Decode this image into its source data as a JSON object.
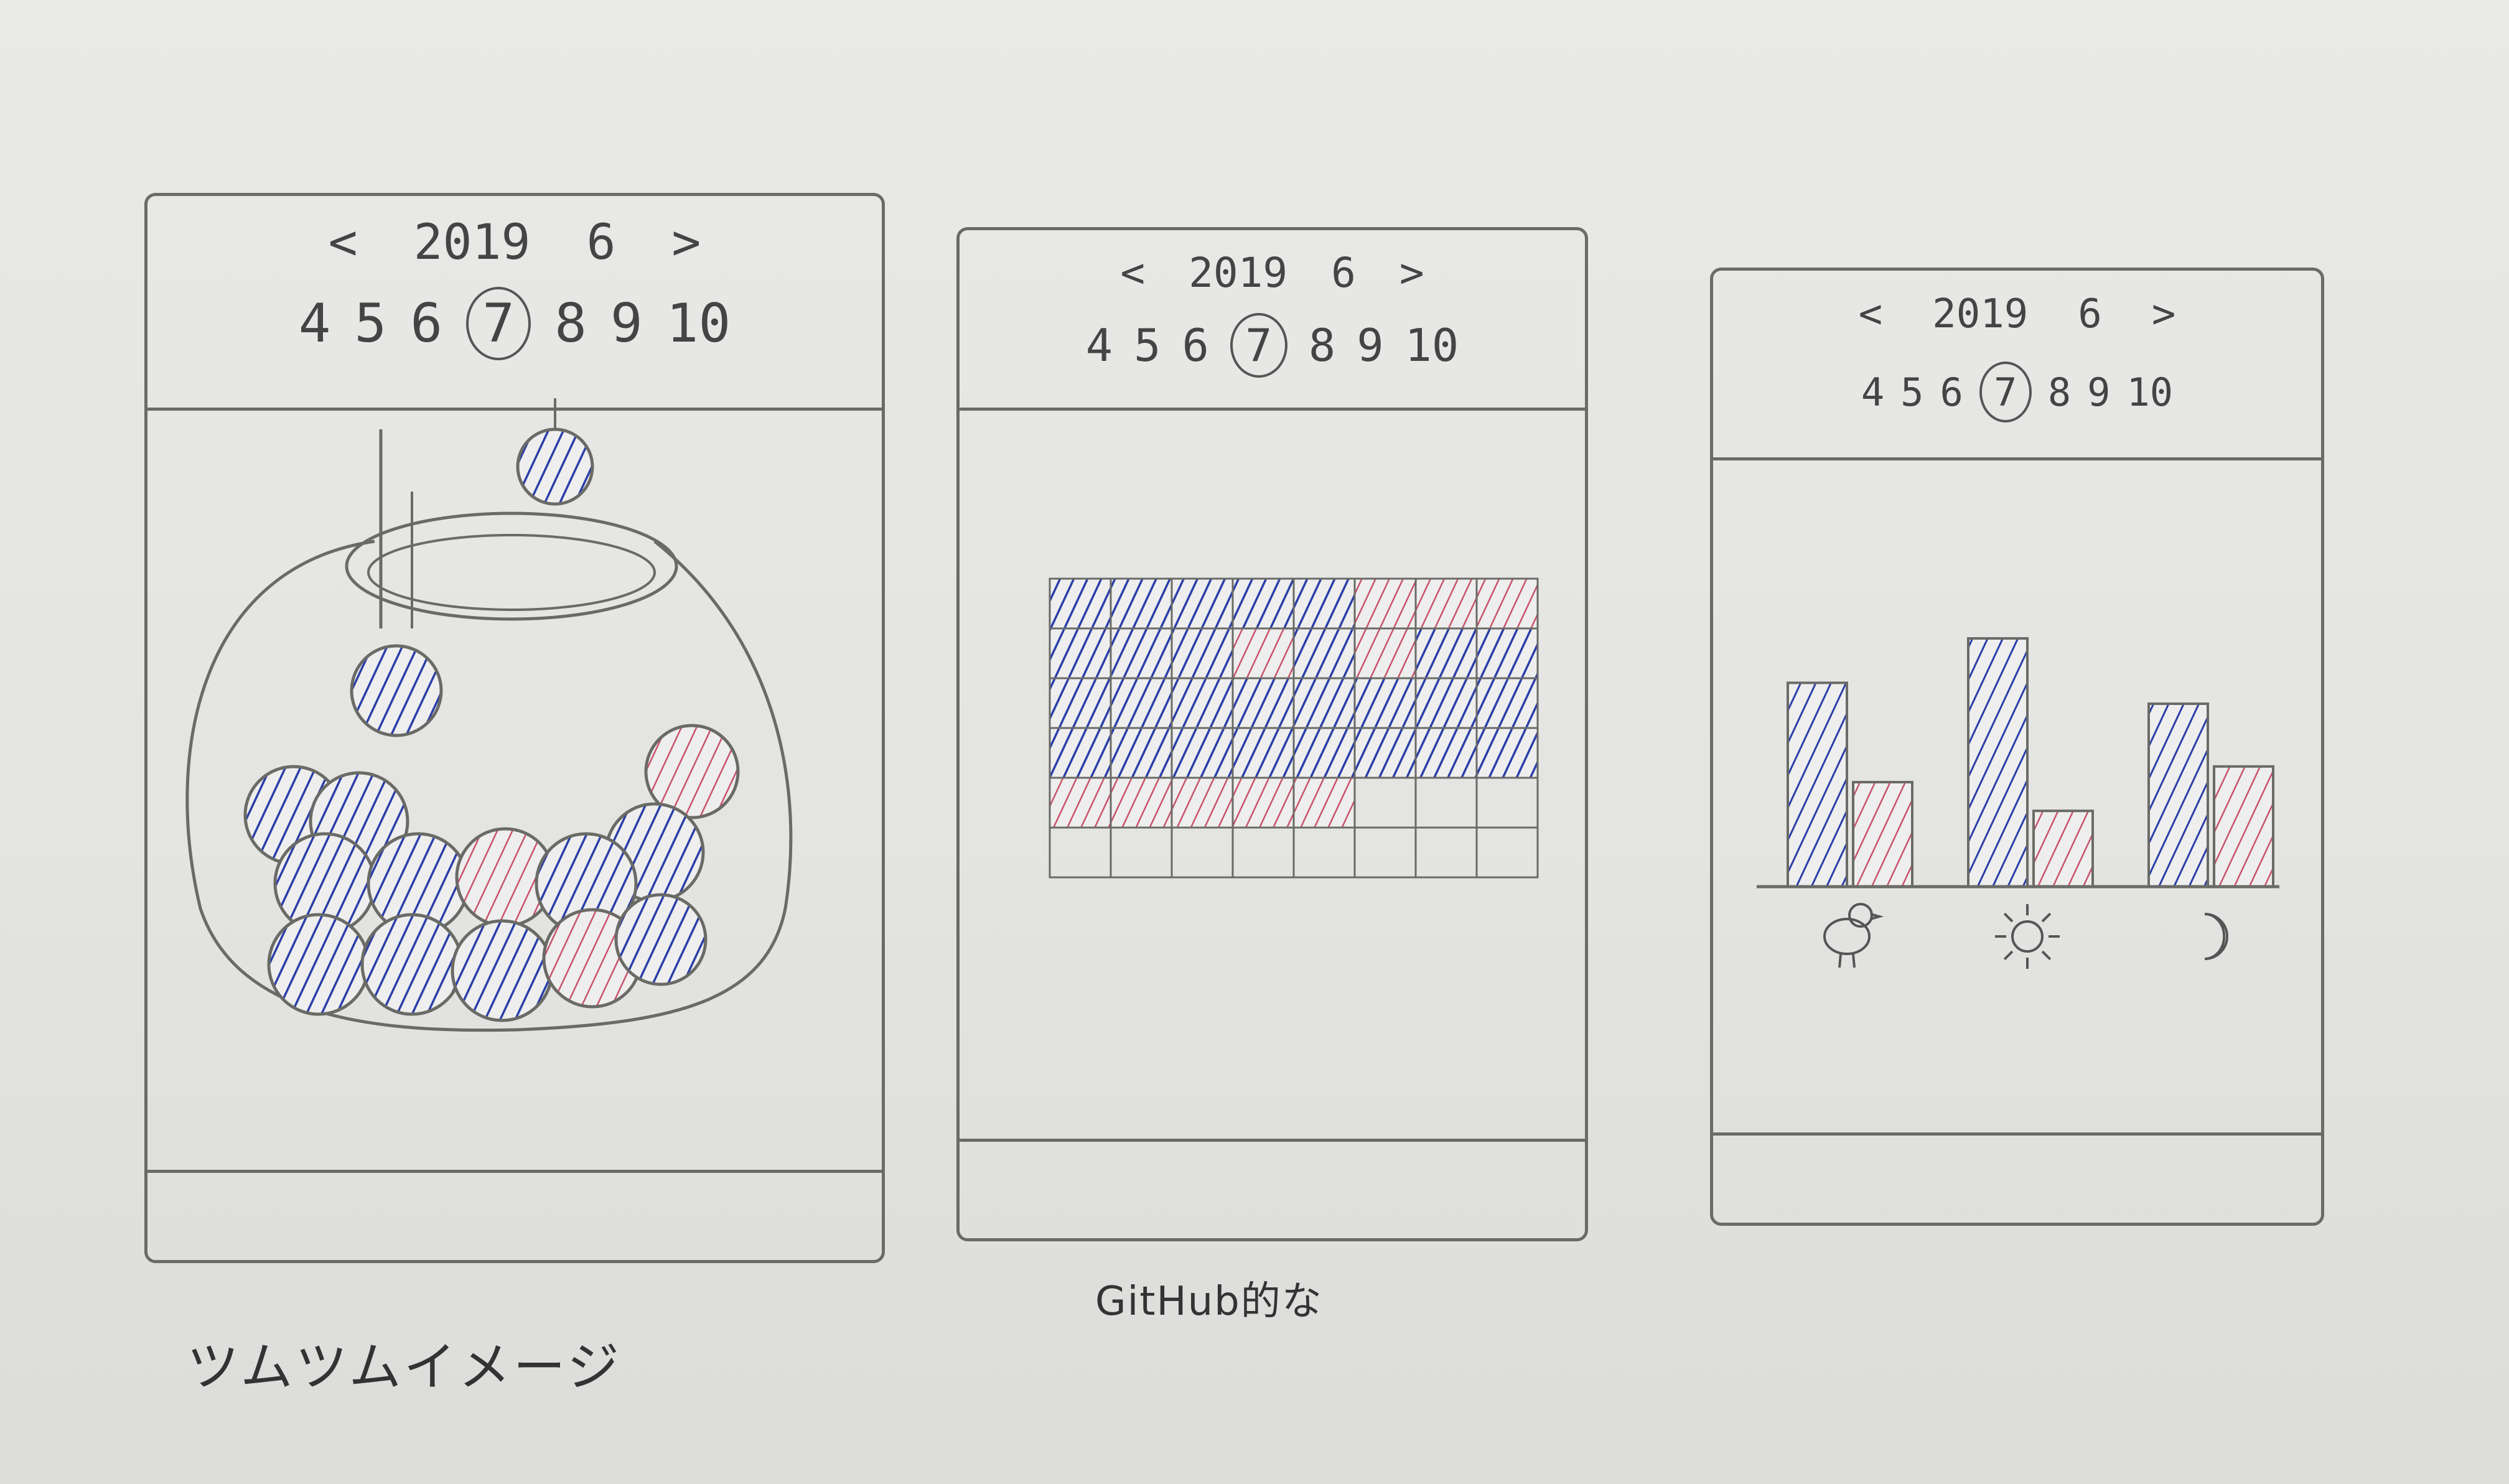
{
  "mockups": [
    {
      "month_nav": {
        "prev": "<",
        "year": "2019",
        "month": "6",
        "next": ">"
      },
      "days": [
        "4",
        "5",
        "6",
        "7",
        "8",
        "9",
        "10"
      ],
      "selected_day": "7",
      "caption": "ツムツムイメージ"
    },
    {
      "month_nav": {
        "prev": "<",
        "year": "2019",
        "month": "6",
        "next": ">"
      },
      "days": [
        "4",
        "5",
        "6",
        "7",
        "8",
        "9",
        "10"
      ],
      "selected_day": "7",
      "caption": "GitHub的な",
      "grid": [
        [
          "b",
          "b",
          "b",
          "b",
          "b",
          "r",
          "r",
          "r"
        ],
        [
          "b",
          "b",
          "b",
          "r",
          "b",
          "r",
          "b",
          "b"
        ],
        [
          "b",
          "b",
          "b",
          "b",
          "b",
          "b",
          "b",
          "b"
        ],
        [
          "b",
          "b",
          "b",
          "b",
          "b",
          "b",
          "b",
          "b"
        ],
        [
          "r",
          "r",
          "r",
          "r",
          "r",
          "",
          "",
          ""
        ],
        [
          "",
          "",
          "",
          "",
          "",
          "",
          "",
          ""
        ]
      ]
    },
    {
      "month_nav": {
        "prev": "<",
        "year": "2019",
        "month": "6",
        "next": ">"
      },
      "days": [
        "4",
        "5",
        "6",
        "7",
        "8",
        "9",
        "10"
      ],
      "selected_day": "7",
      "chart_data": {
        "type": "bar",
        "categories": [
          "morning-chick-icon",
          "noon-sun-icon",
          "night-moon-icon"
        ],
        "series": [
          {
            "color": "#2b3fa8",
            "values": [
              0.78,
              0.95,
              0.7
            ]
          },
          {
            "color": "#c8526a",
            "values": [
              0.4,
              0.29,
              0.46
            ]
          }
        ],
        "ylim": [
          0,
          1
        ]
      }
    }
  ],
  "colors": {
    "blue": "#2b3fa8",
    "red": "#c8526a",
    "stroke": "#6a6a66"
  }
}
